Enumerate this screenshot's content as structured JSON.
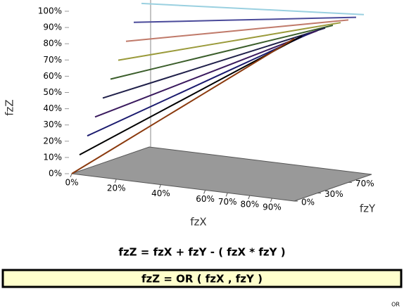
{
  "chart_data": {
    "type": "surface3d",
    "zlabel": "fzZ",
    "xlabel": "fzX",
    "ylabel": "fzY",
    "formula": "fzZ = fzX + fzY - ( fzX * fzY )",
    "title": "fzZ = OR ( fzX , fzY )",
    "corner_label": "OR",
    "x": [
      0,
      20,
      40,
      60,
      80,
      100
    ],
    "series": [
      {
        "color": "#8b3a0e",
        "values": [
          0,
          20,
          40,
          60,
          80,
          100
        ]
      },
      {
        "color": "#000000",
        "values": [
          10,
          28,
          46,
          64,
          82,
          100
        ]
      },
      {
        "color": "#1a1a6e",
        "values": [
          20,
          36,
          52,
          68,
          84,
          100
        ]
      },
      {
        "color": "#3a1a5e",
        "values": [
          30,
          44,
          58,
          72,
          86,
          100
        ]
      },
      {
        "color": "#20204a",
        "values": [
          40,
          52,
          64,
          76,
          88,
          100
        ]
      },
      {
        "color": "#3b5e2b",
        "values": [
          50,
          60,
          70,
          80,
          90,
          100
        ]
      },
      {
        "color": "#9a9a3a",
        "values": [
          60,
          68,
          76,
          84,
          92,
          100
        ]
      },
      {
        "color": "#c07a6a",
        "values": [
          70,
          76,
          82,
          88,
          94,
          100
        ]
      },
      {
        "color": "#4a4a9a",
        "values": [
          80,
          84,
          88,
          92,
          96,
          100
        ]
      },
      {
        "color": "#9ad0e0",
        "values": [
          90,
          92,
          94,
          96,
          98,
          100
        ]
      }
    ],
    "depths": [
      0,
      10,
      20,
      30,
      40,
      50,
      60,
      70,
      80,
      90
    ],
    "zlim": [
      0,
      100
    ],
    "xlim": [
      0,
      100
    ],
    "ylim": [
      0,
      100
    ],
    "zticks": [
      {
        "value": 0,
        "label": "0%"
      },
      {
        "value": 10,
        "label": "10%"
      },
      {
        "value": 20,
        "label": "20%"
      },
      {
        "value": 30,
        "label": "30%"
      },
      {
        "value": 40,
        "label": "40%"
      },
      {
        "value": 50,
        "label": "50%"
      },
      {
        "value": 60,
        "label": "60%"
      },
      {
        "value": 70,
        "label": "70%"
      },
      {
        "value": 80,
        "label": "80%"
      },
      {
        "value": 90,
        "label": "90%"
      },
      {
        "value": 100,
        "label": "100%"
      }
    ],
    "xticks": [
      {
        "value": 0,
        "label": "0%"
      },
      {
        "value": 20,
        "label": "20%"
      },
      {
        "value": 40,
        "label": "40%"
      },
      {
        "value": 60,
        "label": "60%"
      },
      {
        "value": 70,
        "label": "70%"
      },
      {
        "value": 80,
        "label": "80%"
      },
      {
        "value": 90,
        "label": "90%"
      }
    ],
    "yticks": [
      {
        "value": 0,
        "label": "0%"
      },
      {
        "value": 30,
        "label": "30%"
      },
      {
        "value": 70,
        "label": "70%"
      }
    ],
    "floor_color": "#999999"
  }
}
